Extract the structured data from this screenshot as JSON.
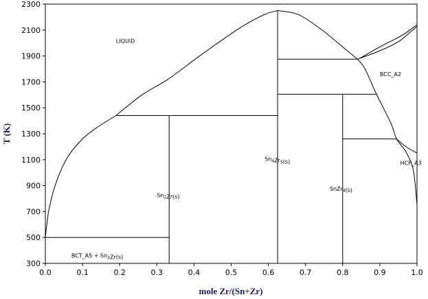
{
  "chart_data": {
    "type": "line",
    "title": "",
    "xlabel": "mole Zr/(Sn+Zr)",
    "ylabel": "T (K)",
    "xlim": [
      0,
      1
    ],
    "ylim": [
      300,
      2300
    ],
    "xticks": [
      "0.0",
      "0.1",
      "0.2",
      "0.3",
      "0.4",
      "0.5",
      "0.6",
      "0.7",
      "0.8",
      "0.9",
      "1.0"
    ],
    "yticks": [
      "300",
      "500",
      "700",
      "900",
      "1100",
      "1300",
      "1500",
      "1700",
      "1900",
      "2100",
      "2300"
    ],
    "grid": false,
    "legend": "none",
    "series": [
      {
        "values": [
          [
            0.0,
            500
          ],
          [
            0.01,
            720
          ],
          [
            0.03,
            930
          ],
          [
            0.06,
            1120
          ],
          [
            0.1,
            1260
          ],
          [
            0.14,
            1350
          ],
          [
            0.19,
            1440
          ]
        ]
      },
      {
        "values": [
          [
            0.19,
            1440
          ],
          [
            0.26,
            1600
          ],
          [
            0.33,
            1720
          ],
          [
            0.42,
            1910
          ],
          [
            0.52,
            2110
          ],
          [
            0.59,
            2220
          ],
          [
            0.625,
            2250
          ]
        ]
      },
      {
        "values": [
          [
            0.625,
            2250
          ],
          [
            0.68,
            2220
          ],
          [
            0.74,
            2110
          ],
          [
            0.8,
            1970
          ],
          [
            0.84,
            1875
          ]
        ]
      },
      {
        "values": [
          [
            0.84,
            1875
          ],
          [
            0.86,
            1800
          ],
          [
            0.89,
            1610
          ],
          [
            0.93,
            1380
          ],
          [
            0.945,
            1260
          ],
          [
            0.97,
            1160
          ],
          [
            0.99,
            1020
          ],
          [
            1.0,
            750
          ]
        ]
      },
      {
        "values": [
          [
            0.84,
            1875
          ],
          [
            0.9,
            1940
          ],
          [
            0.95,
            2010
          ],
          [
            0.98,
            2080
          ],
          [
            1.0,
            2128
          ]
        ]
      },
      {
        "values": [
          [
            0.845,
            1880
          ],
          [
            0.9,
            1970
          ],
          [
            0.96,
            2060
          ],
          [
            1.0,
            2140
          ]
        ]
      },
      {
        "values": [
          [
            0.945,
            1260
          ],
          [
            0.97,
            1200
          ],
          [
            1.0,
            1150
          ]
        ]
      },
      {
        "values": [
          [
            0.0,
            500
          ],
          [
            0.333,
            500
          ]
        ]
      },
      {
        "values": [
          [
            0.19,
            1440
          ],
          [
            0.625,
            1440
          ]
        ]
      },
      {
        "values": [
          [
            0.625,
            1605
          ],
          [
            0.89,
            1605
          ]
        ]
      },
      {
        "values": [
          [
            0.625,
            1875
          ],
          [
            0.84,
            1875
          ]
        ]
      },
      {
        "values": [
          [
            0.8,
            1260
          ],
          [
            0.945,
            1260
          ]
        ]
      },
      {
        "values": [
          [
            0.333,
            300
          ],
          [
            0.333,
            1440
          ]
        ]
      },
      {
        "values": [
          [
            0.625,
            300
          ],
          [
            0.625,
            2250
          ]
        ]
      },
      {
        "values": [
          [
            0.8,
            300
          ],
          [
            0.8,
            1605
          ]
        ]
      }
    ],
    "annotations": [
      {
        "text": "LIQUID",
        "x": 0.19,
        "y": 2000
      },
      {
        "text": "BCC_A2",
        "x": 0.9,
        "y": 1745
      },
      {
        "text": "HCP_A3",
        "x": 0.955,
        "y": 1060
      },
      {
        "main": "Sn",
        "sub1": "4",
        "mid": "Zr",
        "sub2": "5",
        "tail": "(s)",
        "x": 0.59,
        "y": 1090
      },
      {
        "main": "Sn",
        "sub1": "2",
        "mid": "Zr(s)",
        "sub2": "",
        "tail": "",
        "x": 0.3,
        "y": 810
      },
      {
        "main": "SnZr",
        "sub1": "4",
        "mid": "(s)",
        "sub2": "",
        "tail": "",
        "x": 0.765,
        "y": 860
      },
      {
        "main": "BCT_A5 + Sn",
        "sub1": "2",
        "mid": "Zr(s)",
        "sub2": "",
        "tail": "",
        "x": 0.07,
        "y": 345
      }
    ]
  }
}
